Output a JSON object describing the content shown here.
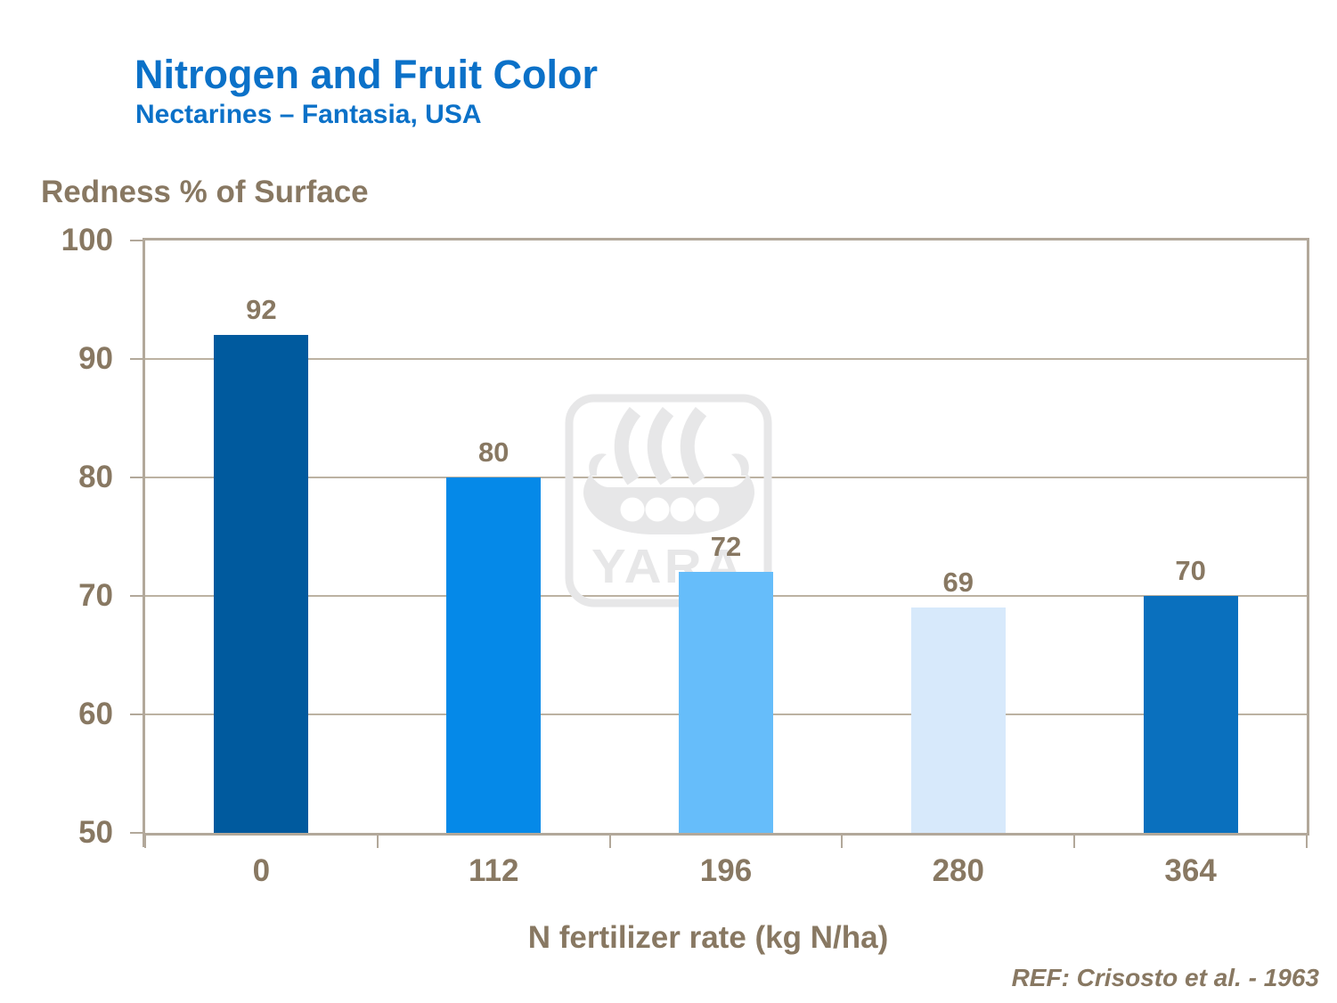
{
  "header": {
    "title": "Nitrogen and Fruit Color",
    "subtitle": "Nectarines – Fantasia, USA"
  },
  "chart_data": {
    "type": "bar",
    "title": "Nitrogen and Fruit Color",
    "subtitle": "Nectarines – Fantasia, USA",
    "categories": [
      "0",
      "112",
      "196",
      "280",
      "364"
    ],
    "values": [
      92,
      80,
      72,
      69,
      70
    ],
    "bar_colors": [
      "#005A9E",
      "#0589E8",
      "#66BDFA",
      "#D7E9FB",
      "#0A70BE"
    ],
    "ylabel": "Redness % of Surface",
    "xlabel": "N fertilizer rate (kg N/ha)",
    "ylim": [
      50,
      100
    ],
    "yticks": [
      100,
      90,
      80,
      70,
      60,
      50
    ],
    "grid": "horizontal",
    "legend": "none",
    "data_labels": true
  },
  "footer": {
    "reference": "REF: Crisosto et al. - 1963"
  },
  "watermark": {
    "brand": "YARA"
  },
  "colors": {
    "title_blue": "#0B71C8",
    "text_brown": "#887862",
    "axis_tan": "#B2A89A",
    "gridline": "#BCB2A2",
    "watermark_gray": "#E7E7E8"
  }
}
